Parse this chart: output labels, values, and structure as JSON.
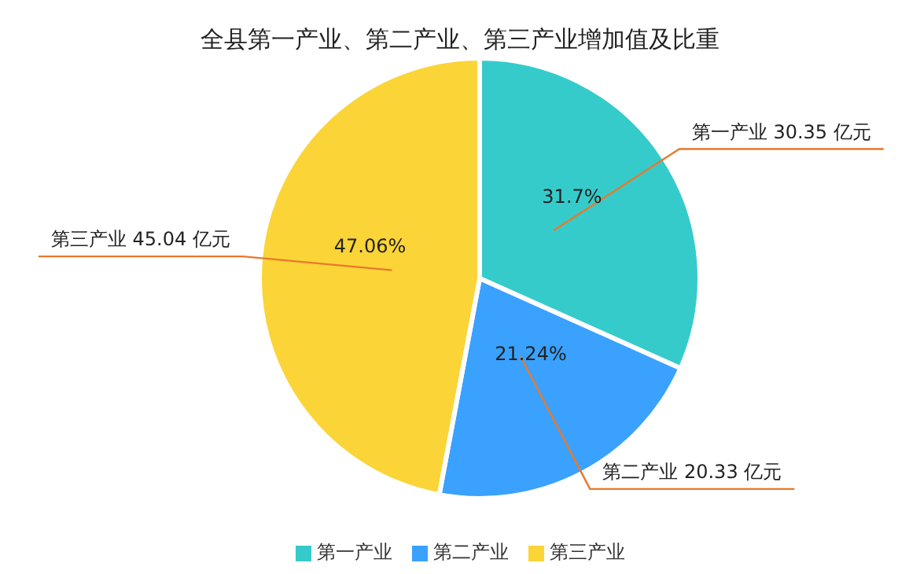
{
  "chart_data": {
    "type": "pie",
    "title": "全县第一产业、第二产业、第三产业增加值及比重",
    "categories": [
      "第一产业",
      "第二产业",
      "第三产业"
    ],
    "values": [
      31.7,
      21.24,
      47.06
    ],
    "colors": [
      "#36cbcb",
      "#3aa1ff",
      "#fbd437"
    ],
    "value_labels": [
      "31.7%",
      "21.24%",
      "47.06%"
    ],
    "annotations": [
      "第一产业 30.35 亿元",
      "第二产业 20.33 亿元",
      "第三产业 45.04 亿元"
    ],
    "legend": "bottom"
  }
}
